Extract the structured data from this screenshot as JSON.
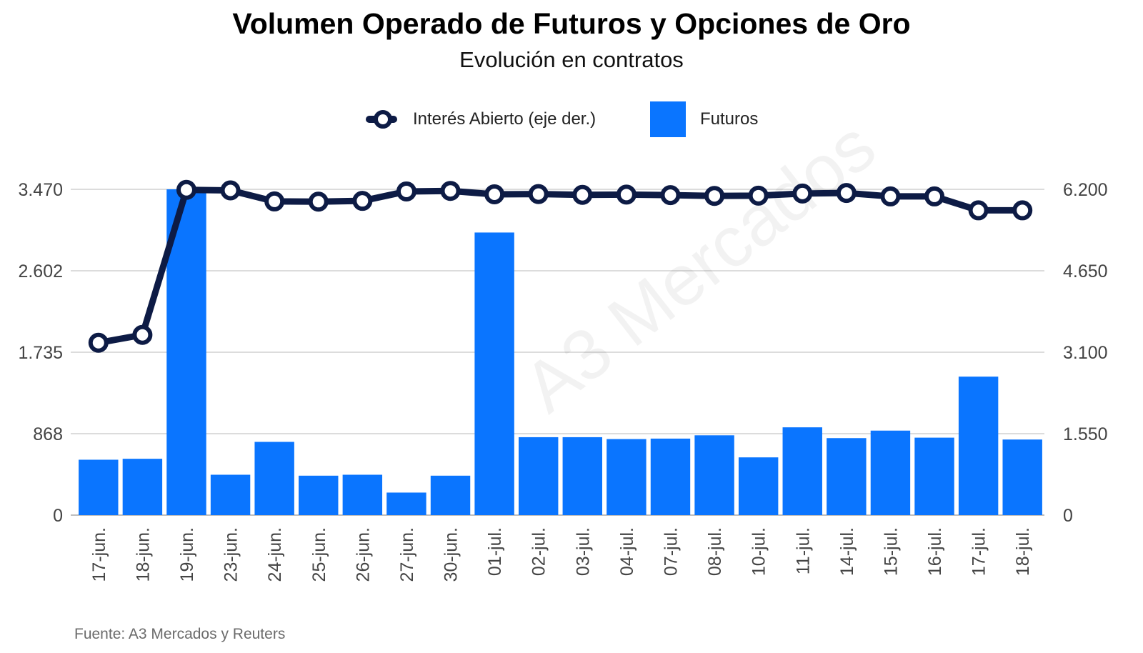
{
  "chart_data": {
    "type": "bar",
    "title": "Volumen Operado de Futuros y Opciones de Oro",
    "subtitle": "Evolución en contratos",
    "categories": [
      "17-jun.",
      "18-jun.",
      "19-jun.",
      "23-jun.",
      "24-jun.",
      "25-jun.",
      "26-jun.",
      "27-jun.",
      "30-jun.",
      "01-jul.",
      "02-jul.",
      "03-jul.",
      "04-jul.",
      "07-jul.",
      "08-jul.",
      "10-jul.",
      "11-jul.",
      "14-jul.",
      "15-jul.",
      "16-jul.",
      "17-jul.",
      "18-jul."
    ],
    "series": [
      {
        "name": "Futuros",
        "type": "bar",
        "axis": "left",
        "color": "#0a75ff",
        "values": [
          590,
          600,
          3470,
          430,
          780,
          420,
          430,
          240,
          420,
          3010,
          830,
          830,
          810,
          815,
          850,
          615,
          935,
          820,
          900,
          825,
          1475,
          805
        ]
      },
      {
        "name": "Interés Abierto (eje der.)",
        "type": "line",
        "axis": "left_right",
        "axis_side": "right",
        "color": "#0d1b45",
        "values": [
          3280,
          3430,
          6190,
          6180,
          5970,
          5965,
          5980,
          6160,
          6170,
          6105,
          6110,
          6095,
          6100,
          6090,
          6075,
          6080,
          6120,
          6130,
          6065,
          6065,
          5800,
          5800
        ]
      }
    ],
    "y_left": {
      "ylim": [
        0,
        3470
      ],
      "ticks": [
        "0",
        "868",
        "1.735",
        "2.602",
        "3.470"
      ],
      "tick_values": [
        0,
        867.5,
        1735,
        2602.5,
        3470
      ]
    },
    "y_right": {
      "ylim": [
        0,
        6200
      ],
      "ticks": [
        "0",
        "1.550",
        "3.100",
        "4.650",
        "6.200"
      ],
      "tick_values": [
        0,
        1550,
        3100,
        4650,
        6200
      ]
    },
    "grid": true,
    "legend_position": "top-center",
    "watermark": "A3 Mercados",
    "source": "Fuente: A3 Mercados y Reuters"
  }
}
